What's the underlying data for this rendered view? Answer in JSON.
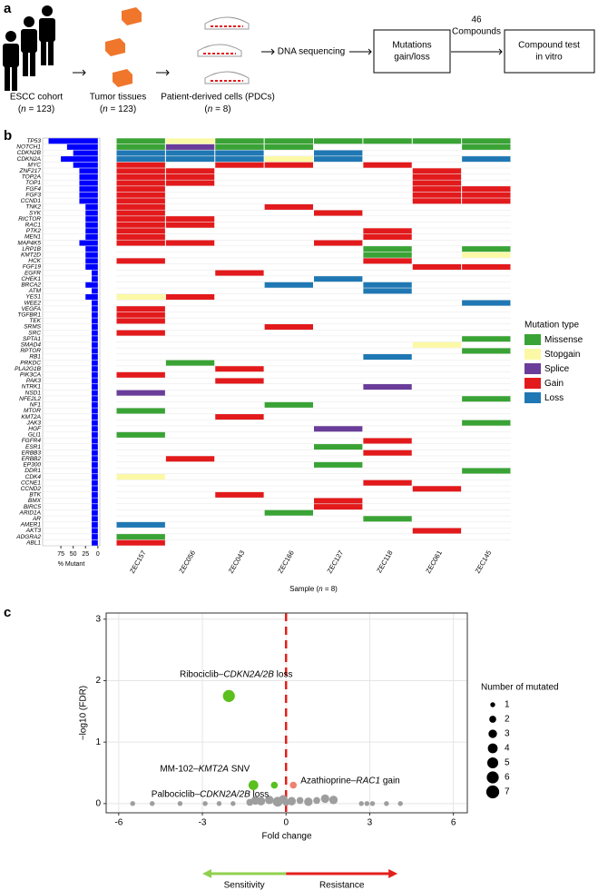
{
  "panel_letters": [
    "a",
    "b",
    "c"
  ],
  "workflow": {
    "cohort": {
      "label": "ESCC cohort",
      "note": [
        "(",
        "n",
        " = 123)"
      ]
    },
    "tissues": {
      "label": "Tumor tissues",
      "note": [
        "(",
        "n",
        " = 123)"
      ]
    },
    "cells": {
      "label": "Patient-derived cells (PDCs)",
      "note": [
        "(",
        "n",
        " = 8)"
      ]
    },
    "sequencing": "DNA sequencing",
    "mutations": [
      "Mutations",
      "gain/loss"
    ],
    "compounds": [
      "46",
      "Compounds"
    ],
    "test": [
      "Compound test",
      "in vitro"
    ]
  },
  "chart_data": [
    {
      "type": "bar",
      "orientation": "horizontal",
      "categories": [
        "TP53",
        "NOTCH1",
        "CDKN2B",
        "CDKN2A",
        "MYC",
        "ZNF217",
        "TOP2A",
        "TOP1",
        "FGF4",
        "FGF3",
        "CCND1",
        "TNK2",
        "SYK",
        "RICTOR",
        "RAC1",
        "PTK2",
        "MEN1",
        "MAP4K5",
        "LRP1B",
        "KMT2D",
        "HCK",
        "FGF19",
        "EGFR",
        "CHEK1",
        "BRCA2",
        "ATM",
        "YES1",
        "WEE2",
        "VEGFA",
        "TGFBR1",
        "TEK",
        "SRMS",
        "SRC",
        "SPTA1",
        "SMAD4",
        "RPTOR",
        "RB1",
        "PRKDC",
        "PLA2G1B",
        "PIK3CA",
        "PAK3",
        "NTRK1",
        "NSD1",
        "NFE2L2",
        "NF1",
        "MTOR",
        "KMT2A",
        "JAK3",
        "HGF",
        "GLI1",
        "FGFR4",
        "ESR1",
        "ERBB3",
        "ERBB2",
        "EP300",
        "DDR1",
        "CDK4",
        "CCNE1",
        "CCND2",
        "BTK",
        "BMX",
        "BIRC5",
        "ARID1A",
        "AR",
        "AMER1",
        "AKT3",
        "ADGRA2",
        "ABL1"
      ],
      "values": [
        100,
        62.5,
        50,
        75,
        50,
        37.5,
        37.5,
        37.5,
        37.5,
        37.5,
        37.5,
        25,
        25,
        25,
        25,
        25,
        25,
        37.5,
        25,
        25,
        25,
        25,
        12.5,
        12.5,
        25,
        12.5,
        25,
        12.5,
        12.5,
        12.5,
        12.5,
        12.5,
        12.5,
        12.5,
        12.5,
        12.5,
        12.5,
        12.5,
        12.5,
        12.5,
        12.5,
        12.5,
        12.5,
        12.5,
        12.5,
        12.5,
        12.5,
        12.5,
        12.5,
        12.5,
        12.5,
        12.5,
        12.5,
        12.5,
        12.5,
        12.5,
        12.5,
        12.5,
        12.5,
        12.5,
        12.5,
        12.5,
        12.5,
        12.5,
        12.5,
        12.5,
        12.5,
        12.5
      ],
      "color": "#0000ff",
      "xlim": [
        112,
        -4
      ],
      "xticks": [
        75,
        50,
        25,
        0
      ],
      "xlabel": "% Mutant"
    },
    {
      "type": "heatmap",
      "categories": [
        "ZEC157",
        "ZEC056",
        "ZEC043",
        "ZEC166",
        "ZEC127",
        "ZEC118",
        "ZEC061",
        "ZEC145"
      ],
      "matrix": [
        [
          0,
          1,
          0,
          0,
          0,
          0,
          0,
          0
        ],
        [
          0,
          2,
          0,
          0,
          null,
          null,
          null,
          0
        ],
        [
          4,
          4,
          4,
          null,
          4,
          null,
          null,
          null
        ],
        [
          4,
          4,
          4,
          1,
          4,
          null,
          null,
          4
        ],
        [
          3,
          null,
          3,
          3,
          null,
          3,
          null,
          null
        ],
        [
          3,
          3,
          null,
          null,
          null,
          null,
          3,
          null
        ],
        [
          3,
          3,
          null,
          null,
          null,
          null,
          3,
          null
        ],
        [
          3,
          3,
          null,
          null,
          null,
          null,
          3,
          null
        ],
        [
          3,
          null,
          null,
          null,
          null,
          null,
          3,
          3
        ],
        [
          3,
          null,
          null,
          null,
          null,
          null,
          3,
          3
        ],
        [
          3,
          null,
          null,
          null,
          null,
          null,
          3,
          3
        ],
        [
          3,
          null,
          null,
          3,
          null,
          null,
          null,
          null
        ],
        [
          3,
          null,
          null,
          null,
          3,
          null,
          null,
          null
        ],
        [
          3,
          3,
          null,
          null,
          null,
          null,
          null,
          null
        ],
        [
          3,
          3,
          null,
          null,
          null,
          null,
          null,
          null
        ],
        [
          3,
          null,
          null,
          null,
          null,
          3,
          null,
          null
        ],
        [
          3,
          null,
          null,
          null,
          null,
          3,
          null,
          null
        ],
        [
          3,
          3,
          null,
          null,
          3,
          null,
          null,
          null
        ],
        [
          null,
          null,
          null,
          null,
          null,
          0,
          null,
          0
        ],
        [
          null,
          null,
          null,
          null,
          null,
          0,
          null,
          1
        ],
        [
          3,
          null,
          null,
          null,
          null,
          3,
          null,
          null
        ],
        [
          null,
          null,
          null,
          null,
          null,
          null,
          3,
          3
        ],
        [
          null,
          null,
          3,
          null,
          null,
          null,
          null,
          null
        ],
        [
          null,
          null,
          null,
          null,
          4,
          null,
          null,
          null
        ],
        [
          null,
          null,
          null,
          4,
          null,
          4,
          null,
          null
        ],
        [
          null,
          null,
          null,
          null,
          null,
          4,
          null,
          null
        ],
        [
          1,
          3,
          null,
          null,
          null,
          null,
          null,
          null
        ],
        [
          null,
          null,
          null,
          null,
          null,
          null,
          null,
          4
        ],
        [
          3,
          null,
          null,
          null,
          null,
          null,
          null,
          null
        ],
        [
          3,
          null,
          null,
          null,
          null,
          null,
          null,
          null
        ],
        [
          3,
          null,
          null,
          null,
          null,
          null,
          null,
          null
        ],
        [
          null,
          null,
          null,
          3,
          null,
          null,
          null,
          null
        ],
        [
          3,
          null,
          null,
          null,
          null,
          null,
          null,
          null
        ],
        [
          null,
          null,
          null,
          null,
          null,
          null,
          null,
          0
        ],
        [
          null,
          null,
          null,
          null,
          null,
          null,
          1,
          null
        ],
        [
          null,
          null,
          null,
          null,
          null,
          null,
          null,
          0
        ],
        [
          null,
          null,
          null,
          null,
          null,
          4,
          null,
          null
        ],
        [
          null,
          0,
          null,
          null,
          null,
          null,
          null,
          null
        ],
        [
          null,
          null,
          3,
          null,
          null,
          null,
          null,
          null
        ],
        [
          3,
          null,
          null,
          null,
          null,
          null,
          null,
          null
        ],
        [
          null,
          null,
          3,
          null,
          null,
          null,
          null,
          null
        ],
        [
          null,
          null,
          null,
          null,
          null,
          2,
          null,
          null
        ],
        [
          2,
          null,
          null,
          null,
          null,
          null,
          null,
          null
        ],
        [
          null,
          null,
          null,
          null,
          null,
          null,
          null,
          0
        ],
        [
          null,
          null,
          null,
          0,
          null,
          null,
          null,
          null
        ],
        [
          0,
          null,
          null,
          null,
          null,
          null,
          null,
          null
        ],
        [
          null,
          null,
          3,
          null,
          null,
          null,
          null,
          null
        ],
        [
          null,
          null,
          null,
          null,
          null,
          null,
          null,
          0
        ],
        [
          null,
          null,
          null,
          null,
          2,
          null,
          null,
          null
        ],
        [
          0,
          null,
          null,
          null,
          null,
          null,
          null,
          null
        ],
        [
          null,
          null,
          null,
          null,
          null,
          3,
          null,
          null
        ],
        [
          null,
          null,
          null,
          null,
          0,
          null,
          null,
          null
        ],
        [
          null,
          null,
          null,
          null,
          null,
          3,
          null,
          null
        ],
        [
          null,
          3,
          null,
          null,
          null,
          null,
          null,
          null
        ],
        [
          null,
          null,
          null,
          null,
          0,
          null,
          null,
          null
        ],
        [
          null,
          null,
          null,
          null,
          null,
          null,
          null,
          0
        ],
        [
          1,
          null,
          null,
          null,
          null,
          null,
          null,
          null
        ],
        [
          null,
          null,
          null,
          null,
          null,
          3,
          null,
          null
        ],
        [
          null,
          null,
          null,
          null,
          null,
          null,
          3,
          null
        ],
        [
          null,
          null,
          3,
          null,
          null,
          null,
          null,
          null
        ],
        [
          null,
          null,
          null,
          null,
          3,
          null,
          null,
          null
        ],
        [
          null,
          null,
          null,
          null,
          3,
          null,
          null,
          null
        ],
        [
          null,
          null,
          null,
          0,
          null,
          null,
          null,
          null
        ],
        [
          null,
          null,
          null,
          null,
          null,
          0,
          null,
          null
        ],
        [
          4,
          null,
          null,
          null,
          null,
          null,
          null,
          null
        ],
        [
          null,
          null,
          null,
          null,
          null,
          null,
          3,
          null
        ],
        [
          0,
          null,
          null,
          null,
          null,
          null,
          null,
          null
        ],
        [
          3,
          null,
          null,
          null,
          null,
          null,
          null,
          null
        ]
      ],
      "xlabel": [
        "Sample (",
        "n",
        " = 8)"
      ],
      "legend_title": "Mutation type",
      "levels": [
        {
          "name": "Missense",
          "color": "#3aa335"
        },
        {
          "name": "Stopgain",
          "color": "#fbf9a5"
        },
        {
          "name": "Splice",
          "color": "#6a3d9a"
        },
        {
          "name": "Gain",
          "color": "#e31a1c"
        },
        {
          "name": "Loss",
          "color": "#1f78b4"
        }
      ]
    },
    {
      "type": "scatter",
      "xlabel": "Fold change",
      "ylabel": "−log10 (FDR)",
      "xlim": [
        -6.45,
        6.5
      ],
      "ylim": [
        -0.15,
        3.1
      ],
      "xticks": [
        -6,
        -3,
        0,
        3,
        6
      ],
      "yticks": [
        0,
        1,
        2,
        3
      ],
      "grid": true,
      "reference_x": 0,
      "reference_color": "#e3211c",
      "points": [
        {
          "label": [
            "Ribociclib–",
            "CDKN2A/2B",
            " loss"
          ],
          "color": "#5bbf1e",
          "x": -2.05,
          "y": 1.75,
          "size": 6
        },
        {
          "label": [
            "MM-102–",
            "KMT2A",
            " SNV"
          ],
          "color": "#5bbf1e",
          "x": -1.17,
          "y": 0.3,
          "size": 4
        },
        {
          "label": [
            "Palbociclib–",
            "CDKN2A/2B",
            " loss"
          ],
          "color": "#5bbf1e",
          "x": -0.42,
          "y": 0.3,
          "size": 2
        },
        {
          "label": [
            "Azathioprine–",
            "RAC1",
            " gain"
          ],
          "color": "#f08070",
          "x": 0.26,
          "y": 0.3,
          "size": 2
        }
      ],
      "background": {
        "color": "#9e9e9e",
        "x": [
          -5.5,
          -4.8,
          -3.8,
          -2.9,
          -2.4,
          -1.9,
          2.7,
          2.9,
          3.1,
          3.6,
          4.1,
          -1.3,
          -1.1,
          -0.9,
          -0.6,
          -0.3,
          -0.1,
          0.0,
          0.2,
          0.5,
          0.8,
          1.1,
          1.4,
          1.7
        ],
        "y": [
          0,
          0,
          0,
          0,
          0,
          0,
          0,
          0,
          0,
          0,
          0,
          0.02,
          0.05,
          0.04,
          0.06,
          0.03,
          0.07,
          0.02,
          0.04,
          0.05,
          0.03,
          0.05,
          0.08,
          0.06
        ],
        "size": [
          1,
          1,
          1,
          1,
          1,
          1,
          1,
          1,
          1,
          1,
          1,
          2,
          3,
          3,
          3,
          4,
          3,
          2,
          3,
          2,
          3,
          2,
          3,
          3
        ]
      },
      "size_legend": {
        "title": "Number of mutated",
        "sizes": [
          1,
          2,
          3,
          4,
          5,
          6,
          7
        ]
      },
      "arrows": [
        {
          "label": "Sensitivity",
          "color": "#8fd14f"
        },
        {
          "label": "Resistance",
          "color": "#e3211c"
        }
      ]
    }
  ]
}
